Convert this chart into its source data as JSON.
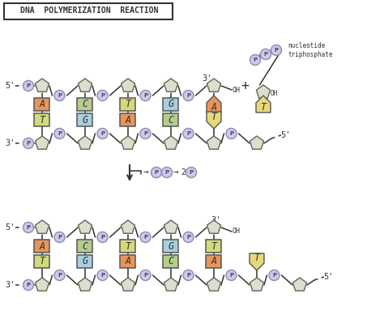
{
  "title": "DNA  POLYMERIZATION  REACTION",
  "bg_color": "#ffffff",
  "colors": {
    "orange": "#E8955A",
    "yellow_green": "#D4D97A",
    "light_blue": "#A8CFDE",
    "green": "#B5CC8E",
    "yellow": "#E8D87A",
    "sugar_fill": "#DDDDD0",
    "sugar_stroke": "#666655",
    "phosphate_fill": "#D0CAE8",
    "phosphate_stroke": "#9090BB",
    "line_color": "#333333"
  },
  "pairs1": [
    {
      "top": "A",
      "tc": "#E8955A",
      "bot": "T",
      "bc": "#D4D97A"
    },
    {
      "top": "C",
      "tc": "#B5CC8E",
      "bot": "G",
      "bc": "#A8CFDE"
    },
    {
      "top": "T",
      "tc": "#D4D97A",
      "bot": "A",
      "bc": "#E8955A"
    },
    {
      "top": "G",
      "tc": "#A8CFDE",
      "bot": "C",
      "bc": "#B5CC8E"
    }
  ],
  "pairs2": [
    {
      "top": "A",
      "tc": "#E8955A",
      "bot": "T",
      "bc": "#D4D97A"
    },
    {
      "top": "C",
      "tc": "#B5CC8E",
      "bot": "G",
      "bc": "#A8CFDE"
    },
    {
      "top": "T",
      "tc": "#D4D97A",
      "bot": "A",
      "bc": "#E8955A"
    },
    {
      "top": "G",
      "tc": "#A8CFDE",
      "bot": "C",
      "bc": "#B5CC8E"
    },
    {
      "top": "T",
      "tc": "#D4D97A",
      "bot": "A",
      "bc": "#E8955A"
    }
  ],
  "ntp_base": "T",
  "ntp_color": "#E8D87A",
  "unpaired_top1": {
    "letter": "A",
    "color": "#E8955A"
  },
  "unpaired_bot1": {
    "letter": "T",
    "color": "#E8D87A"
  }
}
